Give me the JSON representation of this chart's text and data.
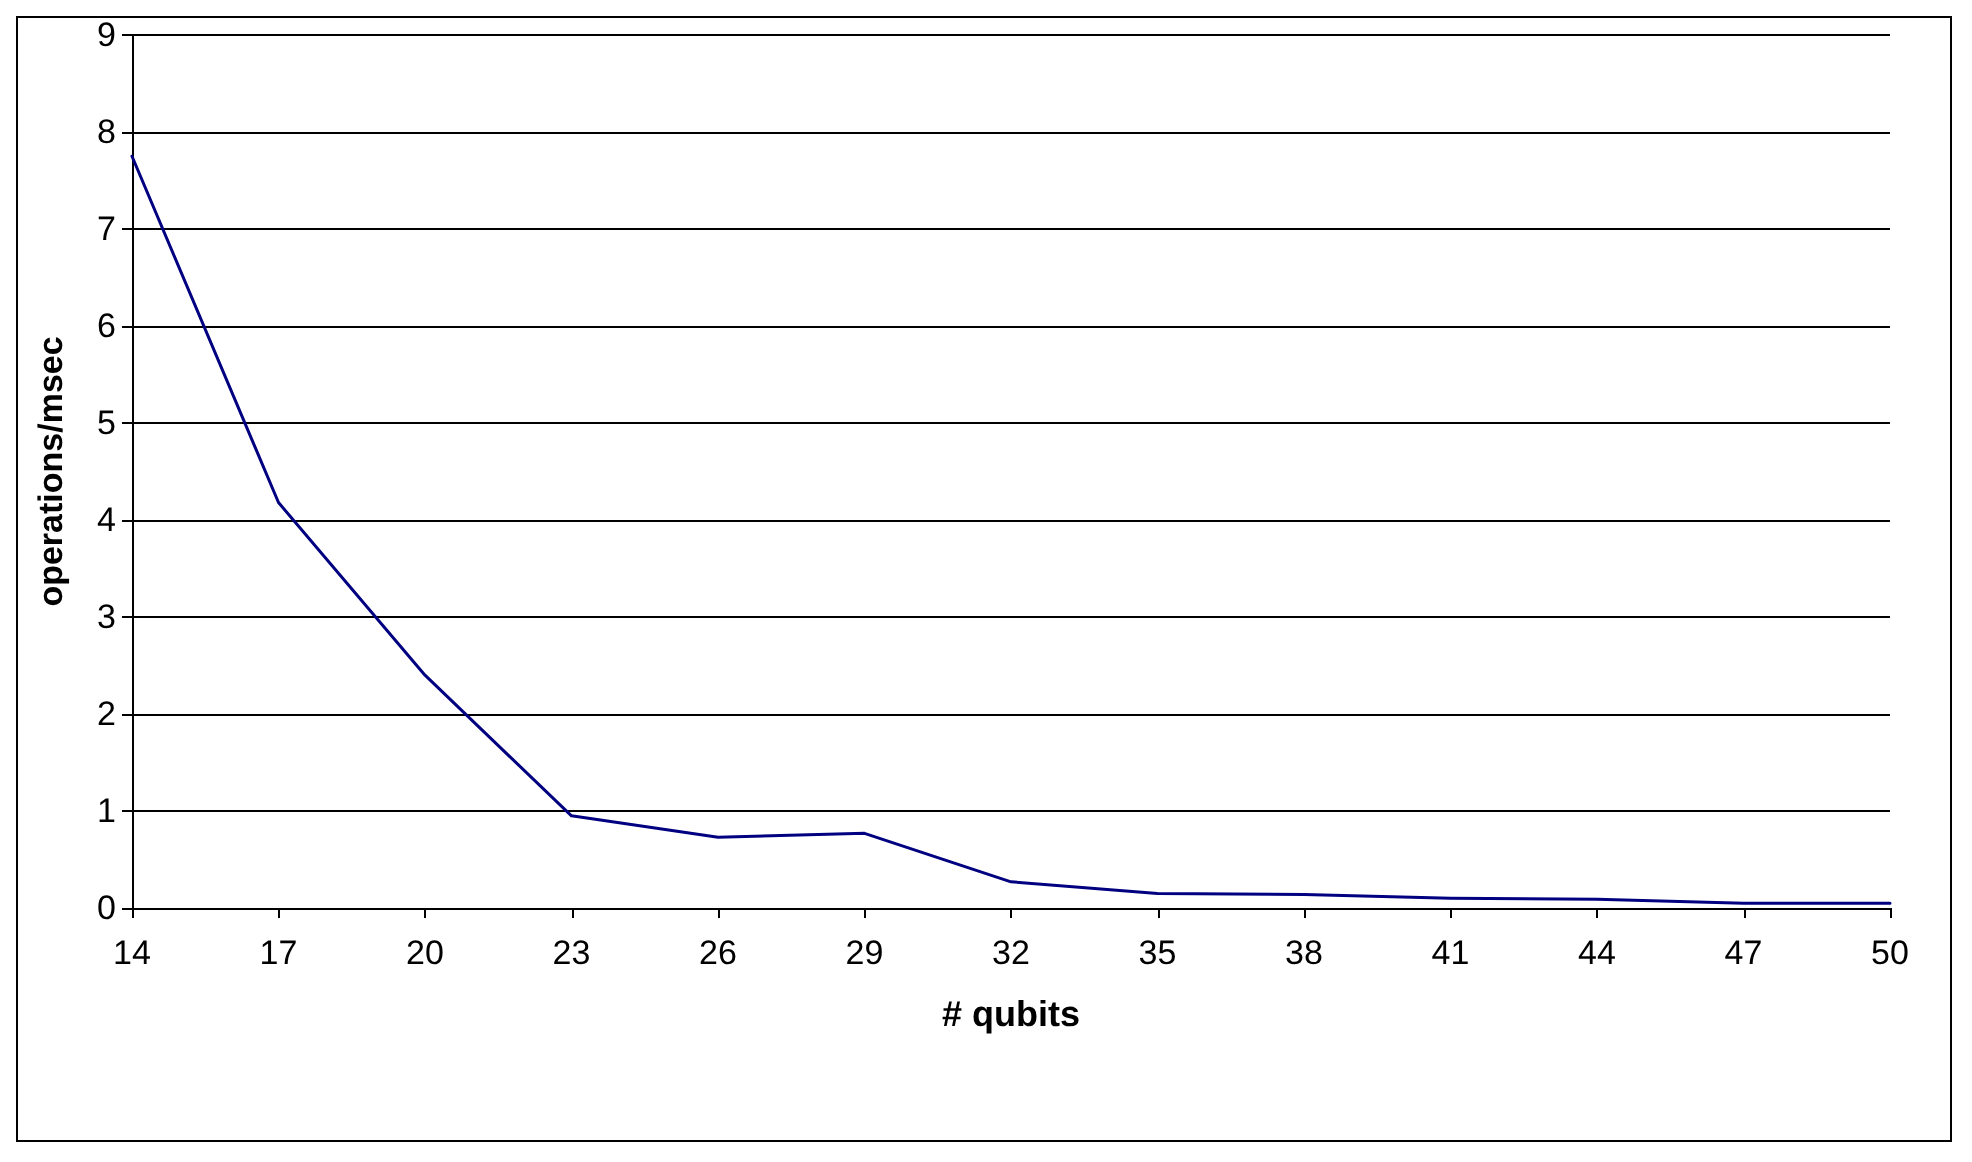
{
  "chart_data": {
    "type": "line",
    "xlabel": "# qubits",
    "ylabel": "operations/msec",
    "categories": [
      "14",
      "17",
      "20",
      "23",
      "26",
      "29",
      "32",
      "35",
      "38",
      "41",
      "44",
      "47",
      "50"
    ],
    "series": [
      {
        "color": "#000080",
        "values": [
          7.75,
          4.18,
          2.4,
          0.95,
          0.73,
          0.77,
          0.27,
          0.15,
          0.14,
          0.1,
          0.09,
          0.05,
          0.05
        ]
      }
    ],
    "ylim": [
      0,
      9
    ],
    "yticks": [
      0,
      1,
      2,
      3,
      4,
      5,
      6,
      7,
      8,
      9
    ],
    "grid": "y",
    "marker": "none",
    "line_style": "solid"
  }
}
